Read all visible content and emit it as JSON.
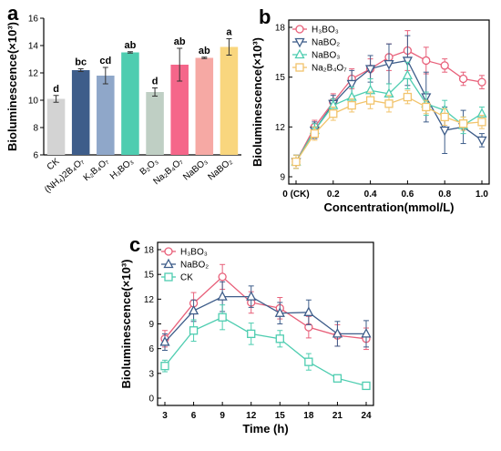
{
  "chart_data": [
    {
      "panel": "a",
      "type": "bar",
      "title": "",
      "xlabel": "",
      "ylabel": "Bioluminescence(×10³)",
      "ylim": [
        6,
        16
      ],
      "yticks": [
        6,
        8,
        10,
        12,
        14,
        16
      ],
      "categories": [
        "CK",
        "(NH₄)2B₄O₇",
        "K₂B₄O₇",
        "H₃BO₃",
        "B₂O₃",
        "Na₂B₄O₇",
        "NaBO₃",
        "NaBO₂"
      ],
      "values": [
        10.1,
        12.2,
        11.8,
        13.5,
        10.6,
        12.6,
        13.1,
        13.9
      ],
      "errors": [
        0.25,
        0.1,
        0.6,
        0.05,
        0.3,
        1.2,
        0.05,
        0.6
      ],
      "significance": [
        "d",
        "bc",
        "cd",
        "ab",
        "d",
        "ab",
        "ab",
        "a"
      ],
      "colors": [
        "#d3d3d3",
        "#3e5d8a",
        "#8fa7c9",
        "#4ecdb0",
        "#bfcfc4",
        "#f5668a",
        "#f6a9a4",
        "#f9d67e"
      ]
    },
    {
      "panel": "b",
      "type": "line",
      "title": "",
      "xlabel": "Concentration(mmol/L)",
      "ylabel": "Bioluminescence(×10³)",
      "xlim": [
        0,
        1.0
      ],
      "ylim": [
        9,
        18
      ],
      "yticks": [
        9,
        12,
        15,
        18
      ],
      "xtick_labels": [
        "0 (CK)",
        "0.2",
        "0.4",
        "0.6",
        "0.8",
        "1.0"
      ],
      "x": [
        0,
        0.1,
        0.2,
        0.3,
        0.4,
        0.5,
        0.6,
        0.7,
        0.8,
        0.9,
        1.0
      ],
      "legend_position": "top-left",
      "series": [
        {
          "name": "H₃BO₃",
          "color": "#e8607a",
          "marker": "circle",
          "values": [
            9.9,
            12.0,
            13.5,
            14.9,
            15.5,
            16.2,
            16.6,
            16.0,
            15.7,
            14.9,
            14.7
          ],
          "errors": [
            0.4,
            0.4,
            0.5,
            0.6,
            0.6,
            0.8,
            1.2,
            0.8,
            0.4,
            0.4,
            0.4
          ]
        },
        {
          "name": "NaBO₂",
          "color": "#3e5d8a",
          "marker": "triangle-down",
          "values": [
            9.9,
            11.8,
            13.4,
            14.6,
            15.5,
            15.8,
            16.0,
            13.8,
            11.8,
            12.0,
            11.2
          ],
          "errors": [
            0.4,
            0.5,
            0.5,
            0.8,
            0.8,
            1.2,
            1.5,
            1.5,
            1.4,
            1.0,
            0.4
          ]
        },
        {
          "name": "NaBO₃",
          "color": "#4ecdb0",
          "marker": "triangle-up",
          "values": [
            9.9,
            11.8,
            13.3,
            13.8,
            14.2,
            14.0,
            15.1,
            13.4,
            13.0,
            12.1,
            12.8
          ],
          "errors": [
            0.4,
            0.4,
            0.4,
            0.6,
            0.7,
            0.6,
            0.8,
            0.7,
            0.6,
            0.5,
            0.4
          ]
        },
        {
          "name": "Na₂B₄O₇",
          "color": "#f2c46c",
          "marker": "square",
          "values": [
            9.9,
            11.6,
            12.8,
            13.3,
            13.6,
            13.4,
            13.8,
            13.2,
            12.6,
            12.2,
            12.3
          ],
          "errors": [
            0.4,
            0.4,
            0.4,
            0.4,
            0.5,
            0.5,
            0.4,
            0.4,
            0.5,
            0.4,
            0.4
          ]
        }
      ]
    },
    {
      "panel": "c",
      "type": "line",
      "title": "",
      "xlabel": "Time (h)",
      "ylabel": "Bioluminescence(×10³)",
      "xlim": [
        3,
        24
      ],
      "ylim": [
        0,
        18
      ],
      "xticks": [
        3,
        6,
        9,
        12,
        15,
        18,
        21,
        24
      ],
      "yticks": [
        0,
        3,
        6,
        9,
        12,
        15,
        18
      ],
      "x": [
        3,
        6,
        9,
        12,
        15,
        18,
        21,
        24
      ],
      "legend_position": "top-left",
      "series": [
        {
          "name": "H₃BO₃",
          "color": "#e8607a",
          "marker": "circle",
          "values": [
            7.2,
            11.5,
            14.7,
            11.6,
            10.9,
            8.6,
            7.6,
            7.2
          ],
          "errors": [
            1.0,
            1.3,
            1.5,
            1.3,
            1.3,
            1.3,
            1.3,
            1.3
          ]
        },
        {
          "name": "NaBO₂",
          "color": "#3e5d8a",
          "marker": "triangle-up",
          "values": [
            6.8,
            10.6,
            12.3,
            12.3,
            10.3,
            10.4,
            7.8,
            7.8
          ],
          "errors": [
            1.0,
            1.3,
            1.8,
            1.3,
            1.3,
            1.5,
            1.5,
            1.6
          ]
        },
        {
          "name": "CK",
          "color": "#4ecdb0",
          "marker": "square",
          "values": [
            3.9,
            8.2,
            9.8,
            7.8,
            7.2,
            4.4,
            2.4,
            1.5
          ],
          "errors": [
            0.7,
            1.3,
            1.5,
            1.3,
            1.0,
            1.0,
            0.4,
            0.2
          ]
        }
      ]
    }
  ]
}
